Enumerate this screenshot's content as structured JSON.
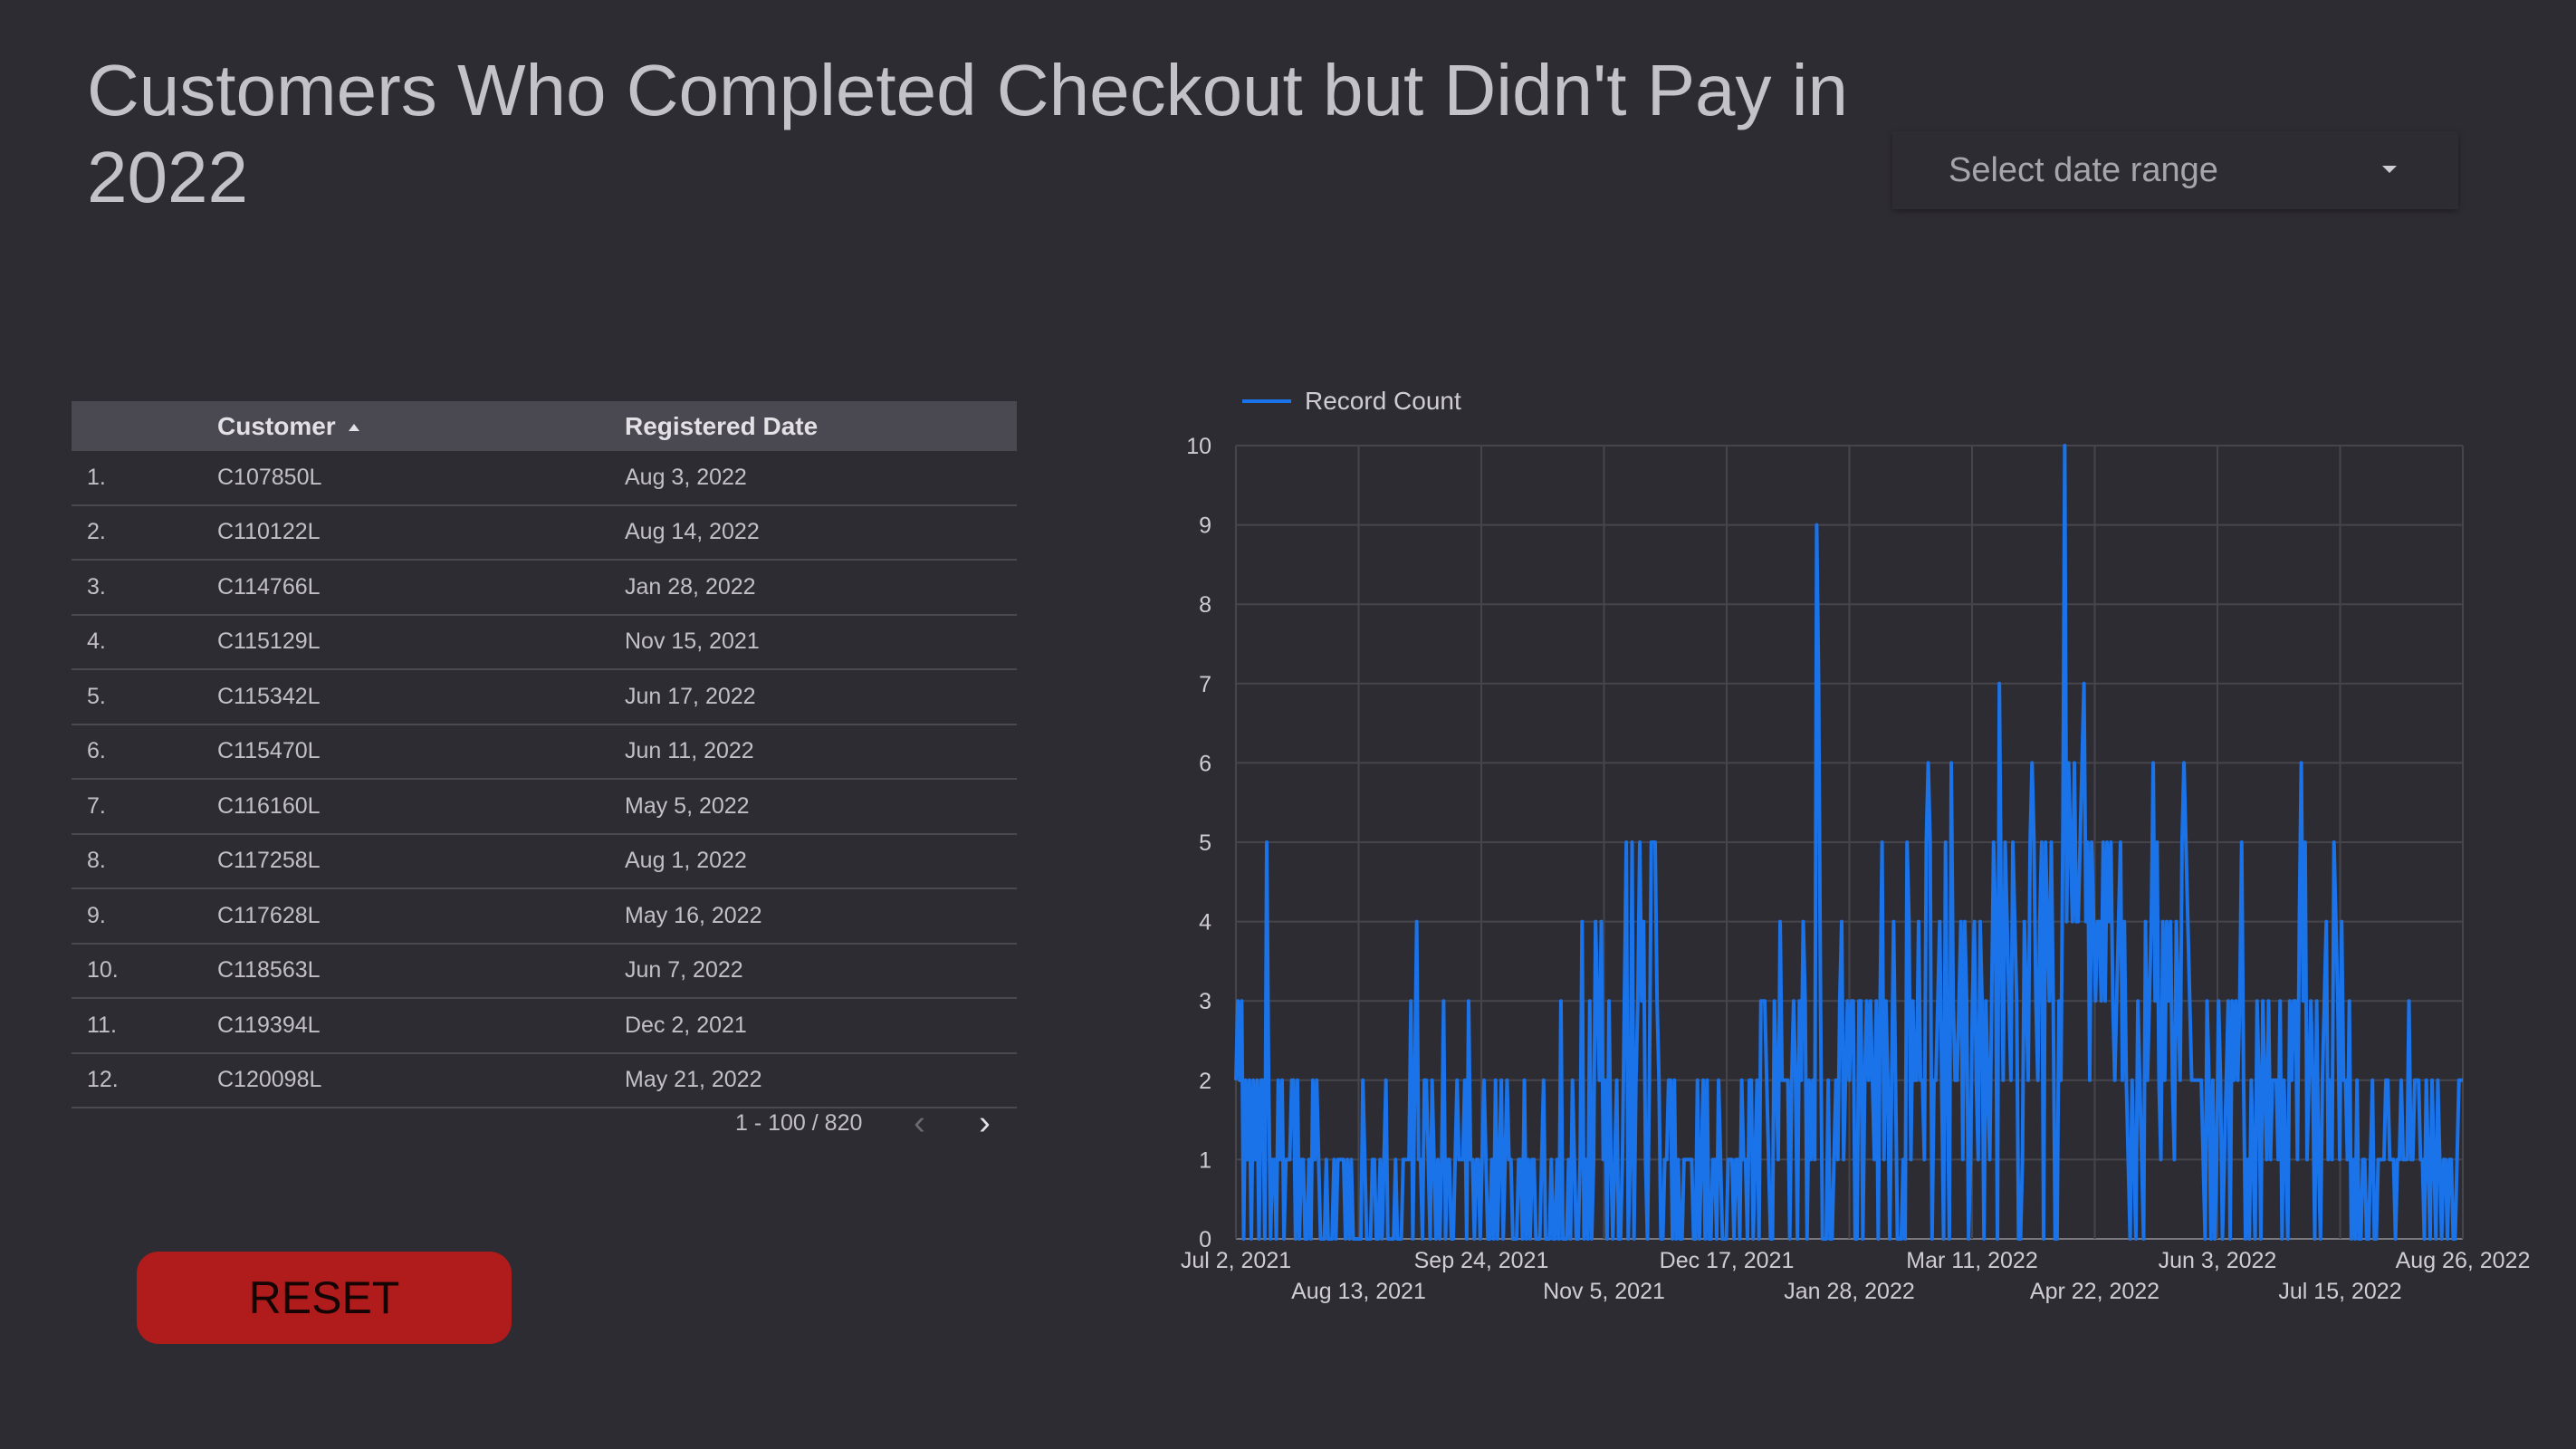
{
  "title": "Customers Who Completed Checkout but Didn't Pay in 2022",
  "date_range": {
    "placeholder": "Select date range"
  },
  "table": {
    "columns": [
      "Customer",
      "Registered Date"
    ],
    "rows": [
      {
        "idx": "1.",
        "customer": "C107850L",
        "date": "Aug 3, 2022"
      },
      {
        "idx": "2.",
        "customer": "C110122L",
        "date": "Aug 14, 2022"
      },
      {
        "idx": "3.",
        "customer": "C114766L",
        "date": "Jan 28, 2022"
      },
      {
        "idx": "4.",
        "customer": "C115129L",
        "date": "Nov 15, 2021"
      },
      {
        "idx": "5.",
        "customer": "C115342L",
        "date": "Jun 17, 2022"
      },
      {
        "idx": "6.",
        "customer": "C115470L",
        "date": "Jun 11, 2022"
      },
      {
        "idx": "7.",
        "customer": "C116160L",
        "date": "May 5, 2022"
      },
      {
        "idx": "8.",
        "customer": "C117258L",
        "date": "Aug 1, 2022"
      },
      {
        "idx": "9.",
        "customer": "C117628L",
        "date": "May 16, 2022"
      },
      {
        "idx": "10.",
        "customer": "C118563L",
        "date": "Jun 7, 2022"
      },
      {
        "idx": "11.",
        "customer": "C119394L",
        "date": "Dec 2, 2021"
      },
      {
        "idx": "12.",
        "customer": "C120098L",
        "date": "May 21, 2022"
      }
    ],
    "pagination": "1 - 100 / 820"
  },
  "reset_label": "RESET",
  "colors": {
    "line": "#1a73e8",
    "reset": "#b01b1b",
    "background": "#2e2c33"
  },
  "chart_data": {
    "type": "line",
    "series": [
      {
        "name": "Record Count",
        "x_start": "Jul 2, 2021",
        "x_end": "Aug 26, 2022",
        "values": [
          2,
          3,
          2,
          3,
          0,
          2,
          1,
          2,
          0,
          2,
          1,
          2,
          0,
          2,
          2,
          0,
          5,
          2,
          0,
          1,
          1,
          0,
          2,
          1,
          2,
          0,
          1,
          1,
          1,
          2,
          2,
          0,
          2,
          0,
          1,
          1,
          0,
          0,
          1,
          0,
          2,
          1,
          2,
          1,
          0,
          0,
          0,
          1,
          0,
          0,
          0,
          1,
          0,
          1,
          1,
          1,
          1,
          0,
          1,
          0,
          1,
          0,
          0,
          0,
          0,
          0,
          2,
          1,
          0,
          0,
          0,
          1,
          1,
          0,
          0,
          1,
          0,
          1,
          2,
          0,
          0,
          0,
          0,
          1,
          0,
          0,
          0,
          1,
          1,
          1,
          1,
          3,
          0,
          2,
          4,
          1,
          1,
          0,
          2,
          2,
          1,
          0,
          2,
          1,
          0,
          1,
          0,
          1,
          3,
          0,
          1,
          1,
          0,
          0,
          1,
          2,
          1,
          1,
          1,
          2,
          0,
          3,
          1,
          1,
          0,
          1,
          1,
          0,
          1,
          2,
          1,
          0,
          0,
          1,
          0,
          2,
          0,
          1,
          2,
          0,
          1,
          2,
          1,
          1,
          0,
          0,
          0,
          1,
          1,
          0,
          2,
          0,
          1,
          0,
          1,
          1,
          0,
          0,
          0,
          1,
          2,
          0,
          0,
          0,
          1,
          0,
          0,
          1,
          0,
          3,
          0,
          0,
          0,
          1,
          0,
          2,
          1,
          0,
          0,
          1,
          4,
          0,
          1,
          0,
          3,
          0,
          1,
          4,
          3,
          2,
          4,
          1,
          2,
          0,
          3,
          1,
          0,
          1,
          2,
          0,
          0,
          1,
          3,
          5,
          0,
          1,
          5,
          0,
          2,
          3,
          5,
          3,
          4,
          1,
          0,
          2,
          5,
          5,
          5,
          3,
          2,
          0,
          0,
          1,
          1,
          2,
          2,
          0,
          2,
          0,
          1,
          0,
          0,
          1,
          1,
          1,
          1,
          1,
          0,
          0,
          2,
          0,
          1,
          2,
          0,
          2,
          0,
          0,
          1,
          1,
          0,
          2,
          1,
          0,
          0,
          0,
          1,
          1,
          1,
          0,
          1,
          1,
          0,
          2,
          1,
          1,
          0,
          2,
          2,
          0,
          1,
          2,
          0,
          3,
          3,
          3,
          2,
          1,
          0,
          0,
          3,
          2,
          1,
          4,
          2,
          2,
          2,
          2,
          0,
          2,
          3,
          2,
          0,
          3,
          2,
          4,
          3,
          0,
          2,
          1,
          2,
          1,
          9,
          7,
          3,
          0,
          0,
          0,
          2,
          0,
          0,
          1,
          2,
          1,
          3,
          4,
          1,
          2,
          3,
          2,
          3,
          3,
          0,
          0,
          3,
          3,
          0,
          2,
          3,
          2,
          3,
          2,
          1,
          3,
          0,
          3,
          5,
          1,
          3,
          2,
          0,
          2,
          4,
          2,
          0,
          0,
          0,
          1,
          0,
          5,
          4,
          1,
          3,
          2,
          2,
          4,
          2,
          2,
          1,
          5,
          6,
          5,
          0,
          2,
          2,
          3,
          4,
          2,
          0,
          5,
          2,
          0,
          6,
          3,
          2,
          2,
          3,
          4,
          1,
          4,
          3,
          0,
          1,
          3,
          4,
          2,
          1,
          4,
          3,
          0,
          3,
          2,
          1,
          3,
          5,
          4,
          0,
          7,
          4,
          2,
          5,
          4,
          3,
          2,
          5,
          4,
          3,
          0,
          0,
          1,
          4,
          3,
          2,
          5,
          6,
          5,
          3,
          2,
          4,
          5,
          0,
          5,
          4,
          3,
          5,
          3,
          0,
          0,
          3,
          2,
          5,
          10,
          4,
          6,
          5,
          4,
          6,
          4,
          4,
          5,
          6,
          7,
          4,
          5,
          2,
          5,
          4,
          3,
          4,
          4,
          3,
          5,
          3,
          5,
          4,
          5,
          3,
          2,
          3,
          4,
          5,
          2,
          4,
          2,
          1,
          0,
          2,
          1,
          0,
          3,
          2,
          1,
          0,
          4,
          2,
          3,
          4,
          6,
          3,
          5,
          2,
          1,
          4,
          2,
          4,
          3,
          4,
          2,
          1,
          4,
          3,
          2,
          5,
          6,
          5,
          4,
          3,
          2,
          2,
          2,
          2,
          2,
          2,
          1,
          0,
          3,
          2,
          0,
          2,
          0,
          1,
          3,
          2,
          0,
          1,
          2,
          3,
          0,
          3,
          2,
          3,
          2,
          3,
          5,
          2,
          0,
          1,
          0,
          2,
          1,
          0,
          3,
          2,
          0,
          3,
          2,
          1,
          3,
          1,
          2,
          2,
          2,
          1,
          3,
          0,
          2,
          1,
          0,
          3,
          2,
          3,
          3,
          1,
          4,
          6,
          3,
          5,
          1,
          2,
          3,
          2,
          0,
          3,
          1,
          0,
          2,
          3,
          4,
          1,
          2,
          1,
          5,
          4,
          3,
          1,
          4,
          2,
          2,
          1,
          3,
          0,
          1,
          0,
          2,
          0,
          0,
          1,
          1,
          0,
          0,
          1,
          2,
          0,
          0,
          1,
          1,
          1,
          1,
          2,
          2,
          1,
          1,
          1,
          0,
          1,
          1,
          2,
          1,
          1,
          1,
          3,
          1,
          1,
          2,
          2,
          2,
          1,
          1,
          0,
          2,
          1,
          0,
          2,
          1,
          0,
          2,
          1,
          0,
          1,
          1,
          0,
          1,
          1,
          0,
          0,
          1,
          2,
          2,
          2
        ]
      }
    ],
    "x_ticks_top": [
      "Jul 2, 2021",
      "Sep 24, 2021",
      "Dec 17, 2021",
      "Mar 11, 2022",
      "Jun 3, 2022",
      "Aug 26, 2022"
    ],
    "x_ticks_bottom": [
      "Aug 13, 2021",
      "Nov 5, 2021",
      "Jan 28, 2022",
      "Apr 22, 2022",
      "Jul 15, 2022"
    ],
    "y_ticks": [
      0,
      1,
      2,
      3,
      4,
      5,
      6,
      7,
      8,
      9,
      10
    ],
    "ylim": [
      0,
      10
    ],
    "grid": true,
    "legend": "top-left"
  }
}
